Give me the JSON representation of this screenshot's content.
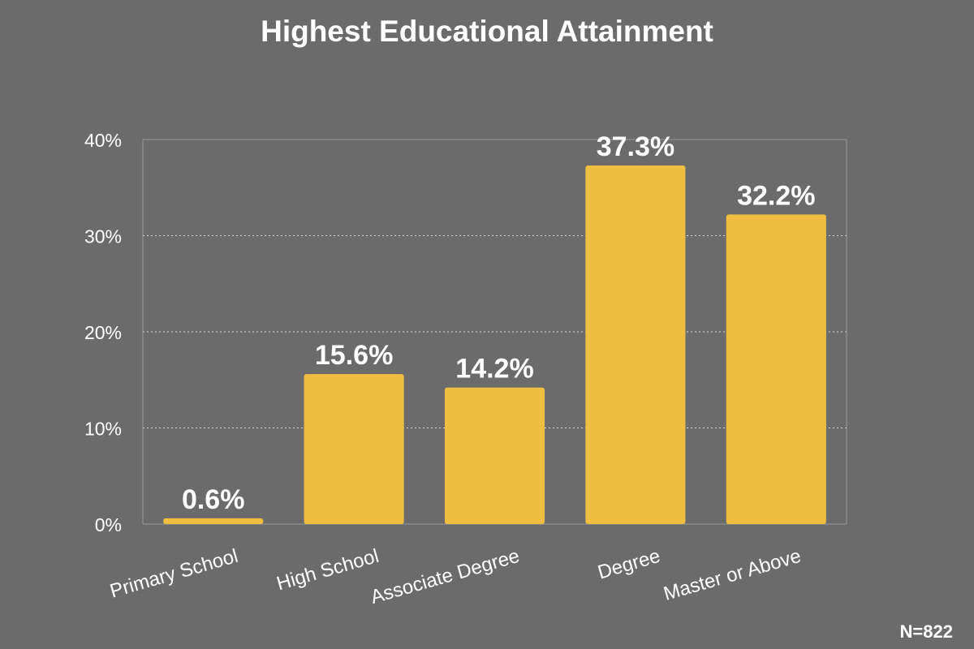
{
  "chart_data": {
    "type": "bar",
    "title": "Highest Educational Attainment",
    "categories": [
      "Primary School",
      "High School",
      "Associate Degree",
      "Degree",
      "Master or Above"
    ],
    "values": [
      0.6,
      15.6,
      14.2,
      37.3,
      32.2
    ],
    "value_labels": [
      "0.6%",
      "15.6%",
      "14.2%",
      "37.3%",
      "32.2%"
    ],
    "ylim": [
      0,
      40
    ],
    "yticks": [
      0,
      10,
      20,
      30,
      40
    ],
    "ytick_labels": [
      "0%",
      "10%",
      "20%",
      "30%",
      "40%"
    ],
    "xlabel": "",
    "ylabel": "",
    "grid": true,
    "legend": "none",
    "bar_color": "#efbd40",
    "background_color": "#6b6b6b"
  },
  "note": "N=822"
}
